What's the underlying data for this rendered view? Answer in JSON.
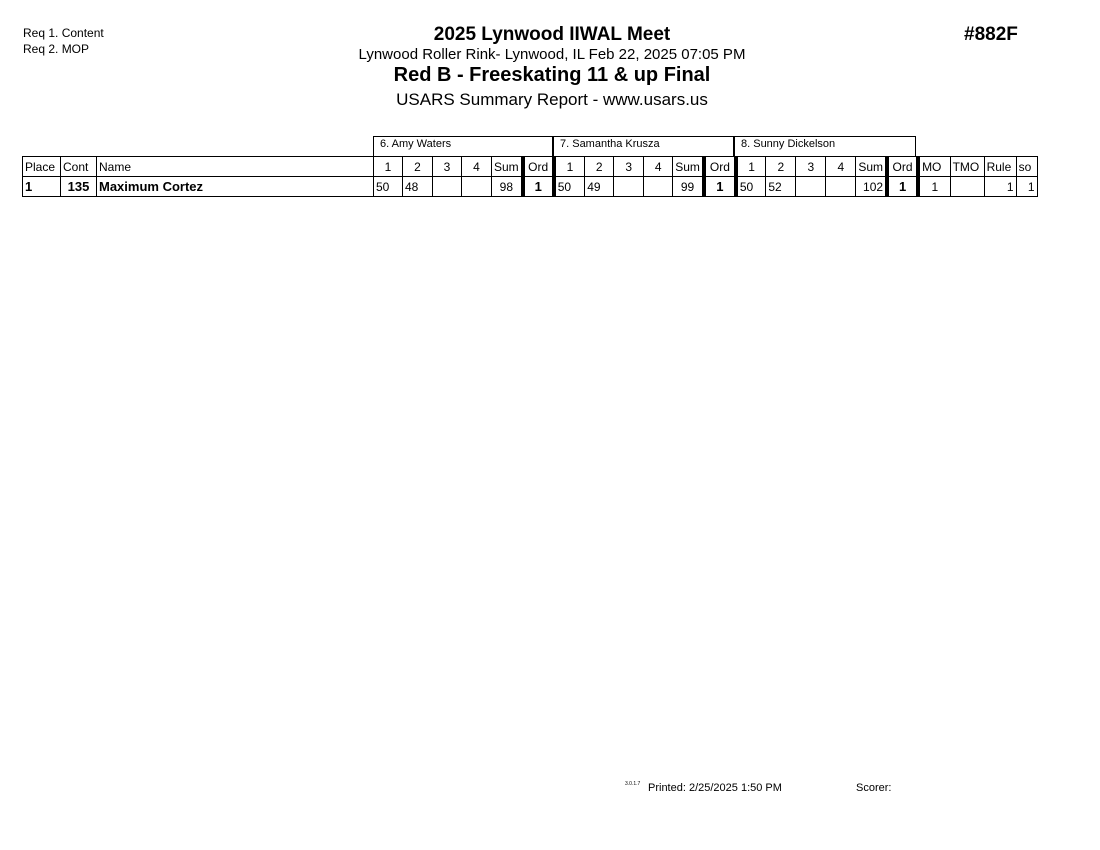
{
  "requirements": [
    "Req  1.  Content",
    "Req  2.  MOP"
  ],
  "header": {
    "title": "2025 Lynwood IIWAL Meet",
    "location": "Lynwood Roller Rink- Lynwood, IL  Feb 22, 2025  07:05 PM",
    "event": "Red B - Freeskating 11 & up Final",
    "report": "USARS Summary Report - www.usars.us",
    "event_number": "#882F"
  },
  "judges": [
    "6.  Amy Waters",
    "7.  Samantha  Krusza",
    "8.  Sunny  Dickelson"
  ],
  "columns": {
    "place": "Place",
    "cont": "Cont",
    "name": "Name",
    "judge_cols": [
      "1",
      "2",
      "3",
      "4",
      "Sum",
      "Ord"
    ],
    "mo": "MO",
    "tmo": "TMO",
    "rule": "Rule",
    "so": "so"
  },
  "rows": [
    {
      "place": "1",
      "cont": "135",
      "name": "Maximum Cortez",
      "scores": [
        [
          "50",
          "48",
          "",
          "",
          "98",
          "1"
        ],
        [
          "50",
          "49",
          "",
          "",
          "99",
          "1"
        ],
        [
          "50",
          "52",
          "",
          "",
          "102",
          "1"
        ]
      ],
      "mo": "1",
      "tmo": "",
      "rule": "1",
      "so": "1"
    }
  ],
  "footer": {
    "version": "3.0.1.7",
    "printed": "Printed:  2/25/2025  1:50 PM",
    "scorer": "Scorer:"
  }
}
